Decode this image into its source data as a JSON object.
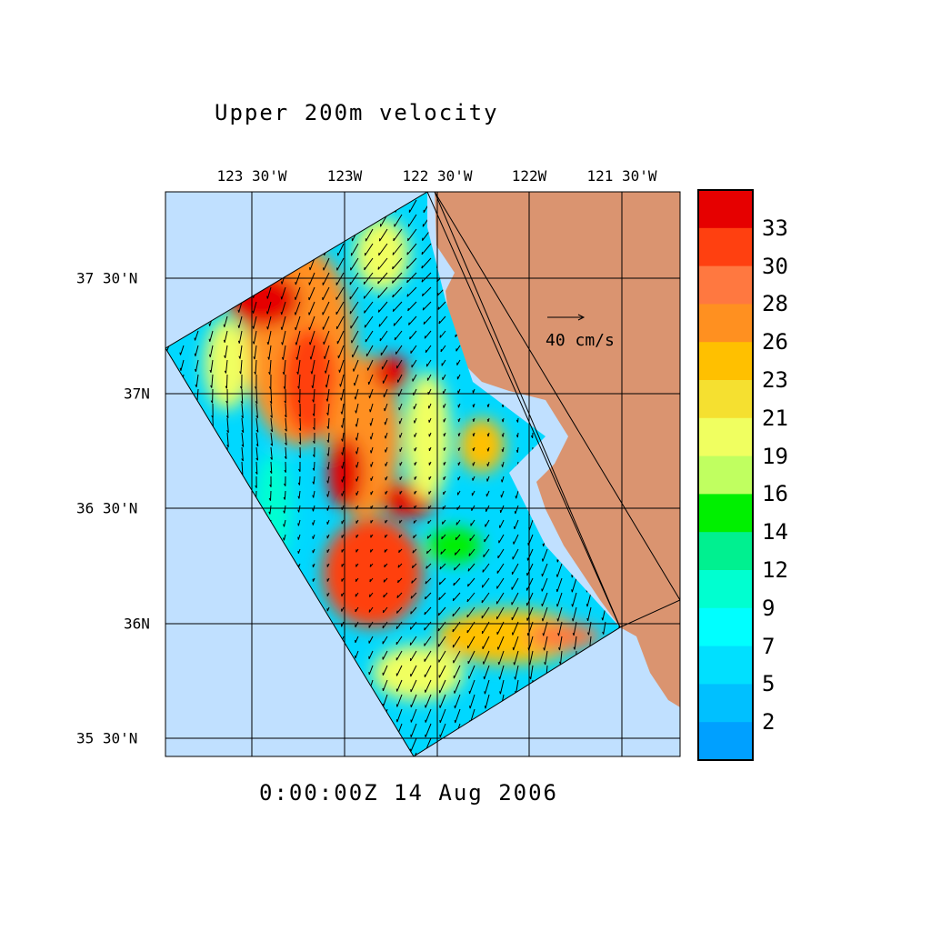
{
  "title": "Upper 200m velocity",
  "timestamp": "0:00:00Z  14 Aug 2006",
  "map": {
    "lon_ticks": [
      "123 30'W",
      "123W",
      "122 30'W",
      "122W",
      "121 30'W"
    ],
    "lat_ticks": [
      "37 30'N",
      "37N",
      "36 30'N",
      "36N",
      "35 30'N"
    ],
    "ocean_color": "#c0e0ff",
    "land_color": "#da9470",
    "reference_vector_label": "40 cm/s"
  },
  "colorbar": {
    "labels": [
      "33",
      "30",
      "28",
      "26",
      "23",
      "21",
      "19",
      "16",
      "14",
      "12",
      "9",
      "7",
      "5",
      "2"
    ],
    "colors": [
      "#e60000",
      "#ff4010",
      "#ff7840",
      "#ff9020",
      "#ffc000",
      "#f5e030",
      "#f0ff60",
      "#c0ff60",
      "#00f000",
      "#00f090",
      "#00ffd0",
      "#00ffff",
      "#00e0ff",
      "#00c0ff",
      "#00a0ff"
    ]
  }
}
